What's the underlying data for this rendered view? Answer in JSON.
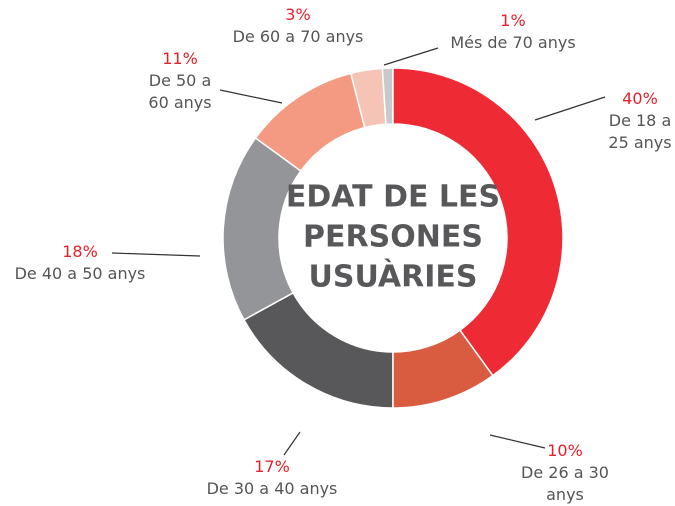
{
  "chart_data": {
    "type": "donut",
    "title": [
      "EDAT DE LES",
      "PERSONES",
      "USUÀRIES"
    ],
    "categories": [
      "De 18 a 25 anys",
      "De 26 a 30 anys",
      "De 30 a 40 anys",
      "De 40 a 50 anys",
      "De 50 a 60 anys",
      "De 60 a 70 anys",
      "Més de 70 anys"
    ],
    "values": [
      40,
      10,
      17,
      18,
      11,
      3,
      1
    ],
    "value_labels": [
      "40%",
      "10%",
      "17%",
      "18%",
      "11%",
      "3%",
      "1%"
    ],
    "colors": [
      "#ee2a35",
      "#d95b40",
      "#58585a",
      "#939598",
      "#f49a82",
      "#f5c4b6",
      "#c8c9cb"
    ]
  }
}
